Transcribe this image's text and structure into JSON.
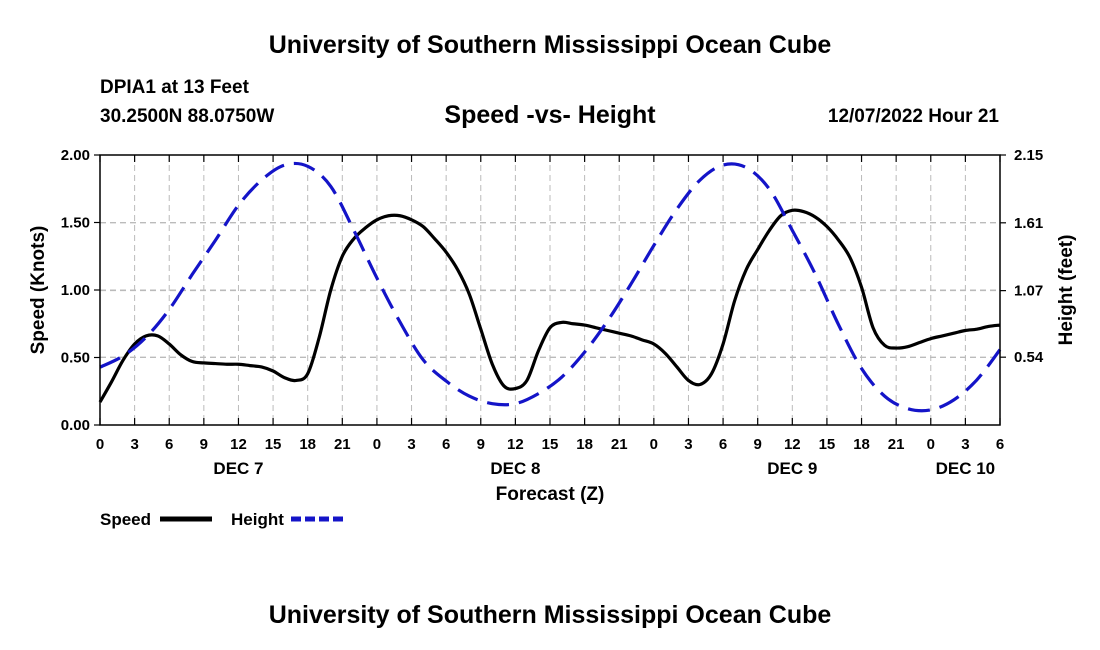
{
  "chart_data": {
    "type": "line",
    "main_title": "University of Southern Mississippi Ocean Cube",
    "footer_title": "University of Southern Mississippi Ocean Cube",
    "station": "DPIA1 at 13 Feet",
    "coordinates": "30.2500N  88.0750W",
    "title": "Speed -vs- Height",
    "datetime": "12/07/2022 Hour 21",
    "xlabel": "Forecast (Z)",
    "ylabel": "Speed (Knots)",
    "ylabel_right": "Height (feet)",
    "ylim": [
      0,
      2
    ],
    "yticks": [
      "0.00",
      "0.50",
      "1.00",
      "1.50",
      "2.00"
    ],
    "ylim_right": [
      0,
      2.15
    ],
    "yticks_right": [
      {
        "value": 0.54,
        "label": "0.54"
      },
      {
        "value": 1.07,
        "label": "1.07"
      },
      {
        "value": 1.61,
        "label": "1.61"
      },
      {
        "value": 2.15,
        "label": "2.15"
      }
    ],
    "x_range_hours": [
      0,
      78
    ],
    "xticks": [
      "0",
      "3",
      "6",
      "9",
      "12",
      "15",
      "18",
      "21",
      "0",
      "3",
      "6",
      "9",
      "12",
      "15",
      "18",
      "21",
      "0",
      "3",
      "6",
      "9",
      "12",
      "15",
      "18",
      "21",
      "0",
      "3",
      "6"
    ],
    "day_labels": [
      {
        "hour": 12,
        "label": "DEC 7"
      },
      {
        "hour": 36,
        "label": "DEC 8"
      },
      {
        "hour": 60,
        "label": "DEC 9"
      },
      {
        "hour": 75,
        "label": "DEC 10"
      }
    ],
    "grid": true,
    "series": [
      {
        "name": "Speed",
        "axis": "left",
        "color": "#000000",
        "style": "solid",
        "points": [
          [
            0,
            0.17
          ],
          [
            1,
            0.32
          ],
          [
            2,
            0.48
          ],
          [
            3,
            0.6
          ],
          [
            4,
            0.66
          ],
          [
            5,
            0.66
          ],
          [
            6,
            0.6
          ],
          [
            7,
            0.52
          ],
          [
            8,
            0.47
          ],
          [
            9,
            0.46
          ],
          [
            10,
            0.455
          ],
          [
            11,
            0.45
          ],
          [
            12,
            0.45
          ],
          [
            13,
            0.44
          ],
          [
            14,
            0.43
          ],
          [
            15,
            0.4
          ],
          [
            16,
            0.35
          ],
          [
            17,
            0.33
          ],
          [
            18,
            0.38
          ],
          [
            19,
            0.65
          ],
          [
            20,
            1.0
          ],
          [
            21,
            1.25
          ],
          [
            22,
            1.38
          ],
          [
            23,
            1.46
          ],
          [
            24,
            1.52
          ],
          [
            25,
            1.55
          ],
          [
            26,
            1.55
          ],
          [
            27,
            1.52
          ],
          [
            28,
            1.47
          ],
          [
            29,
            1.38
          ],
          [
            30,
            1.28
          ],
          [
            31,
            1.15
          ],
          [
            32,
            0.97
          ],
          [
            33,
            0.71
          ],
          [
            34,
            0.45
          ],
          [
            35,
            0.29
          ],
          [
            36,
            0.27
          ],
          [
            37,
            0.33
          ],
          [
            38,
            0.55
          ],
          [
            39,
            0.72
          ],
          [
            40,
            0.76
          ],
          [
            41,
            0.75
          ],
          [
            42,
            0.74
          ],
          [
            43,
            0.72
          ],
          [
            44,
            0.7
          ],
          [
            45,
            0.68
          ],
          [
            46,
            0.66
          ],
          [
            47,
            0.63
          ],
          [
            48,
            0.6
          ],
          [
            49,
            0.53
          ],
          [
            50,
            0.43
          ],
          [
            51,
            0.33
          ],
          [
            52,
            0.3
          ],
          [
            53,
            0.38
          ],
          [
            54,
            0.6
          ],
          [
            55,
            0.92
          ],
          [
            56,
            1.15
          ],
          [
            57,
            1.3
          ],
          [
            58,
            1.44
          ],
          [
            59,
            1.55
          ],
          [
            60,
            1.59
          ],
          [
            61,
            1.58
          ],
          [
            62,
            1.54
          ],
          [
            63,
            1.47
          ],
          [
            64,
            1.37
          ],
          [
            65,
            1.24
          ],
          [
            66,
            1.02
          ],
          [
            67,
            0.72
          ],
          [
            68,
            0.59
          ],
          [
            69,
            0.57
          ],
          [
            70,
            0.58
          ],
          [
            71,
            0.61
          ],
          [
            72,
            0.64
          ],
          [
            73,
            0.66
          ],
          [
            74,
            0.68
          ],
          [
            75,
            0.7
          ],
          [
            76,
            0.71
          ],
          [
            77,
            0.73
          ],
          [
            78,
            0.74
          ]
        ]
      },
      {
        "name": "Height",
        "axis": "right",
        "color": "#1414c8",
        "style": "dashed",
        "points": [
          [
            0,
            0.46
          ],
          [
            2,
            0.55
          ],
          [
            4,
            0.7
          ],
          [
            6,
            0.92
          ],
          [
            8,
            1.2
          ],
          [
            10,
            1.47
          ],
          [
            12,
            1.75
          ],
          [
            14,
            1.95
          ],
          [
            16,
            2.07
          ],
          [
            18,
            2.06
          ],
          [
            20,
            1.9
          ],
          [
            22,
            1.55
          ],
          [
            24,
            1.17
          ],
          [
            26,
            0.82
          ],
          [
            28,
            0.52
          ],
          [
            30,
            0.35
          ],
          [
            32,
            0.23
          ],
          [
            34,
            0.17
          ],
          [
            36,
            0.17
          ],
          [
            38,
            0.25
          ],
          [
            40,
            0.38
          ],
          [
            42,
            0.58
          ],
          [
            44,
            0.83
          ],
          [
            46,
            1.12
          ],
          [
            48,
            1.43
          ],
          [
            50,
            1.72
          ],
          [
            52,
            1.95
          ],
          [
            54,
            2.07
          ],
          [
            56,
            2.05
          ],
          [
            58,
            1.88
          ],
          [
            60,
            1.55
          ],
          [
            62,
            1.2
          ],
          [
            64,
            0.8
          ],
          [
            66,
            0.45
          ],
          [
            68,
            0.23
          ],
          [
            70,
            0.13
          ],
          [
            72,
            0.12
          ],
          [
            74,
            0.2
          ],
          [
            76,
            0.36
          ],
          [
            78,
            0.6
          ]
        ]
      }
    ],
    "legend": [
      {
        "label": "Speed",
        "color": "#000000",
        "style": "solid"
      },
      {
        "label": "Height",
        "color": "#1414c8",
        "style": "dashed"
      }
    ]
  }
}
